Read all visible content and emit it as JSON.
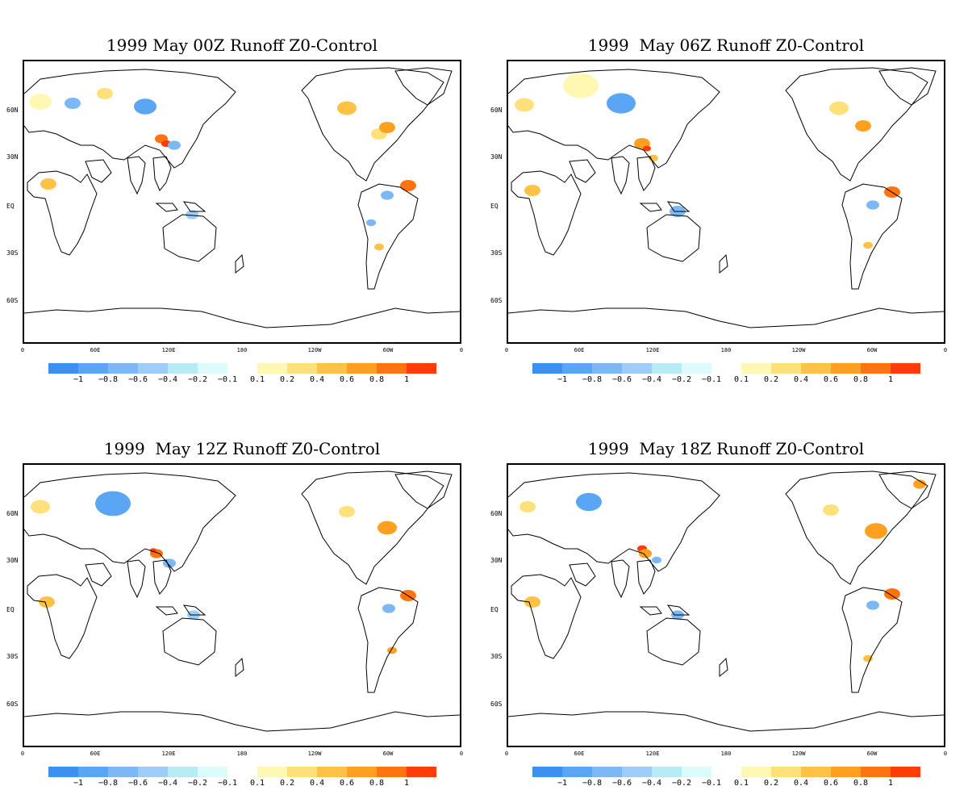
{
  "panels": [
    {
      "title": "1999 May 00Z Runoff Z0-Control"
    },
    {
      "title": "1999  May 06Z Runoff Z0-Control"
    },
    {
      "title": "1999  May 12Z Runoff Z0-Control"
    },
    {
      "title": "1999  May 18Z Runoff Z0-Control"
    }
  ],
  "lat_labels": [
    "60N",
    "30N",
    "EQ",
    "30S",
    "60S"
  ],
  "lon_labels": [
    "0",
    "60E",
    "120E",
    "180",
    "120W",
    "60W",
    "0"
  ],
  "colorbar": {
    "negative_colors": [
      "#3d8ff0",
      "#5aa6f5",
      "#7bb8f5",
      "#9dcdf8",
      "#b6ecf5",
      "#dcfcfc"
    ],
    "positive_colors": [
      "#fff8b3",
      "#ffe07a",
      "#ffc247",
      "#ffa11f",
      "#ff7410",
      "#ff3c0a"
    ],
    "negative_labels": [
      "−1",
      "−0.8",
      "−0.6",
      "−0.4",
      "−0.2",
      "−0.1"
    ],
    "positive_labels": [
      "0.1",
      "0.2",
      "0.4",
      "0.6",
      "0.8",
      "1"
    ]
  }
}
